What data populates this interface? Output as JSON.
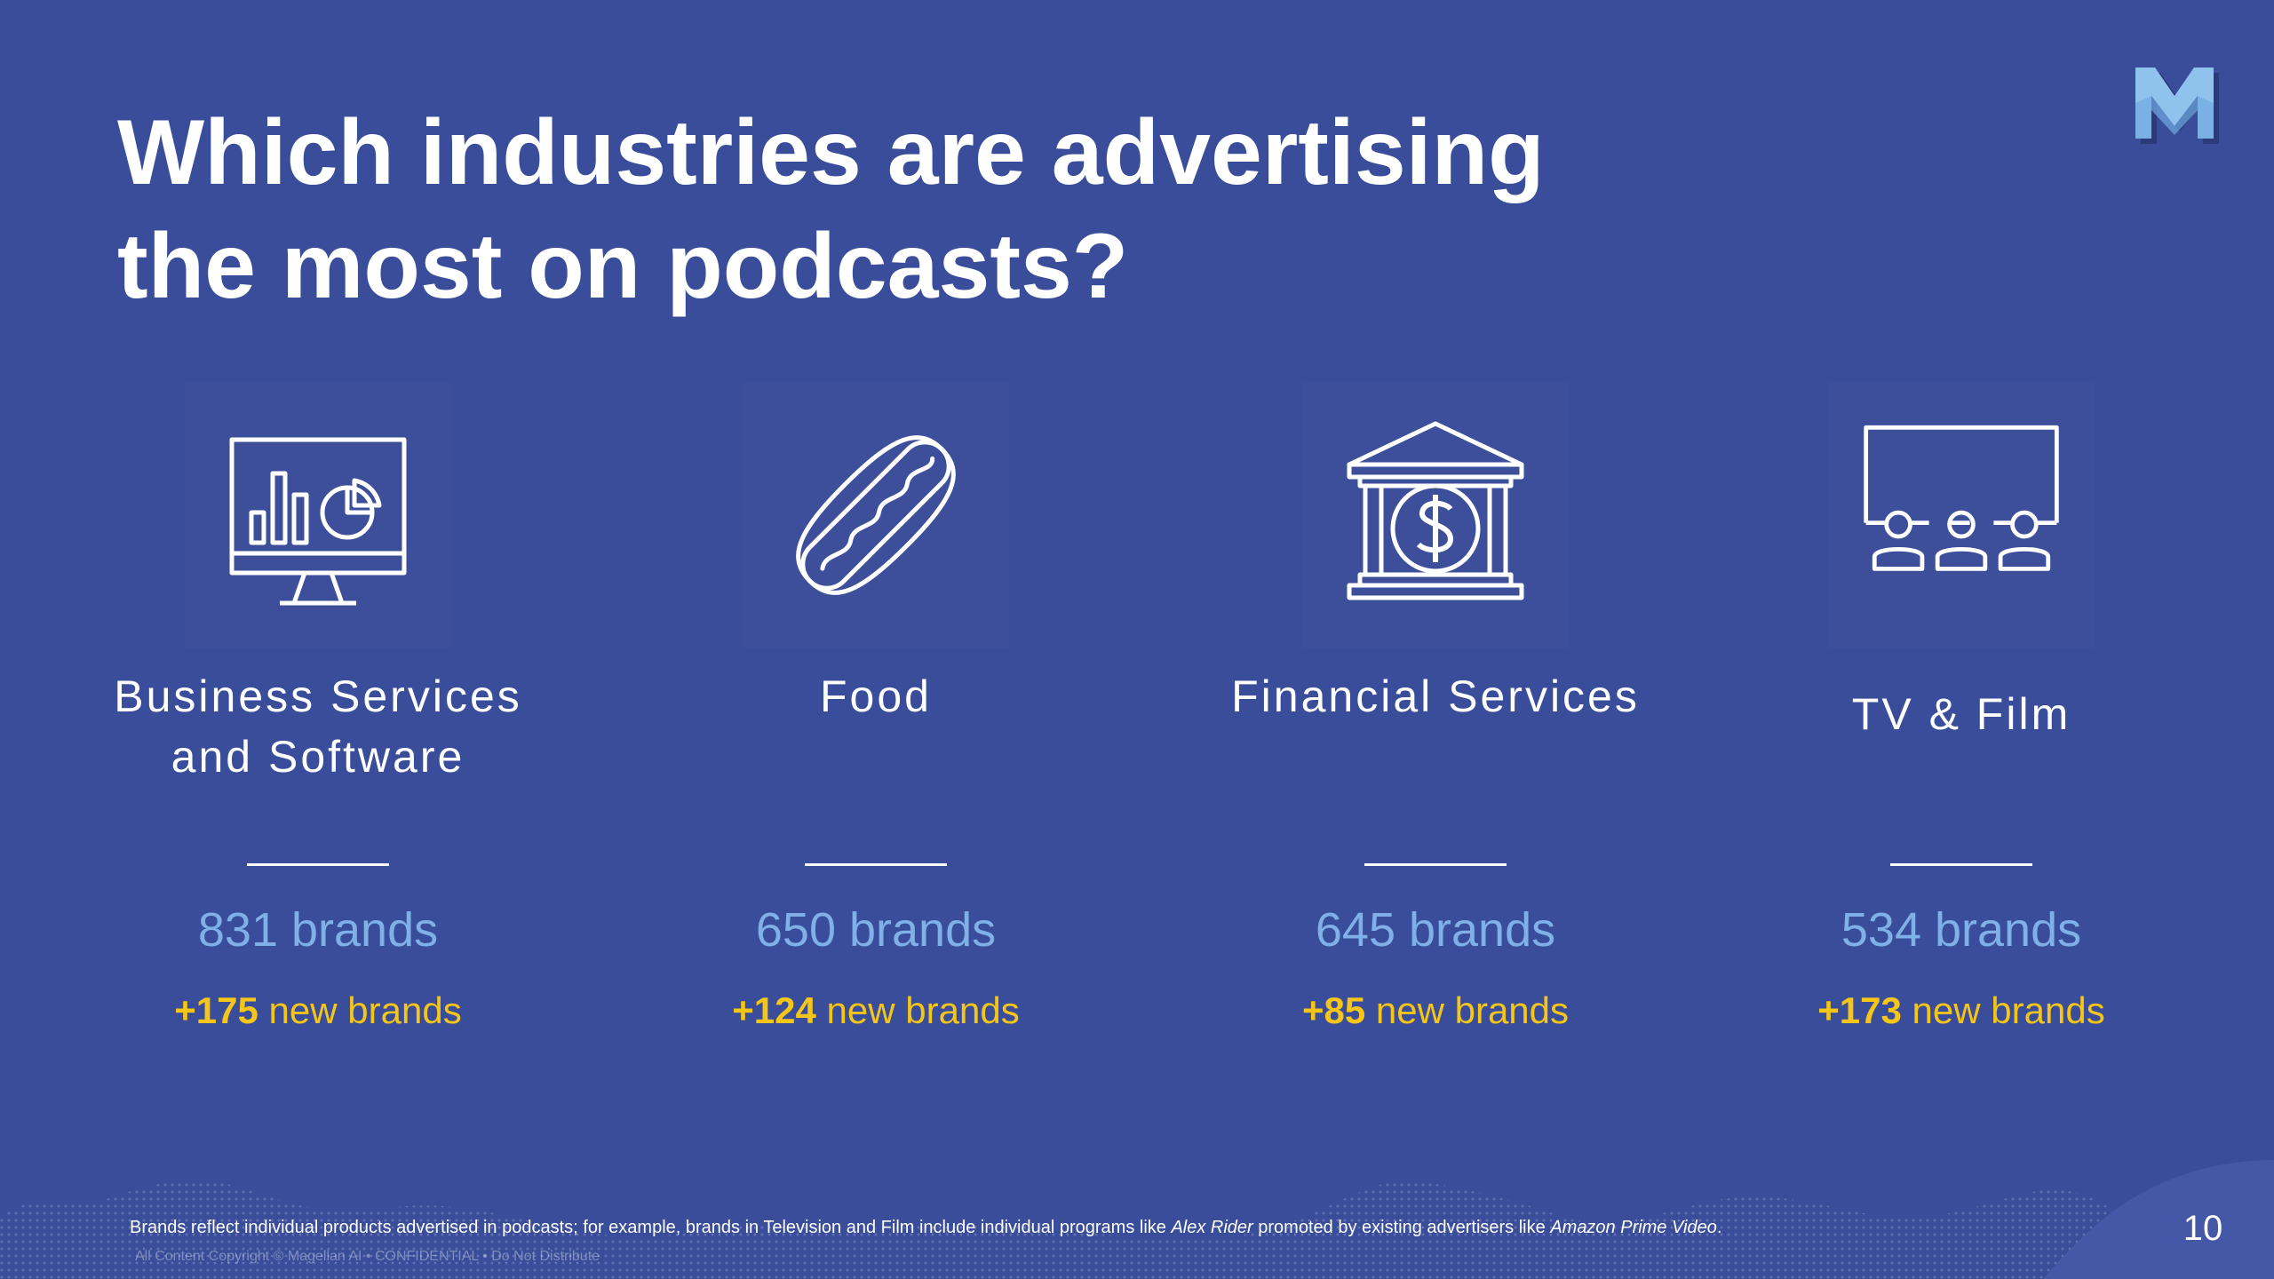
{
  "slide": {
    "title_line1": "Which industries are advertising",
    "title_line2": "the most on podcasts?",
    "page_number": "10"
  },
  "industries": [
    {
      "icon": "monitor-chart-icon",
      "name_line1": "Business Services",
      "name_line2": "and Software",
      "brands": "831 brands",
      "new_count": "+175",
      "new_label": " new brands"
    },
    {
      "icon": "hotdog-icon",
      "name_line1": "Food",
      "name_line2": "",
      "brands": "650 brands",
      "new_count": "+124",
      "new_label": " new brands"
    },
    {
      "icon": "bank-icon",
      "name_line1": "Financial Services",
      "name_line2": "",
      "brands": "645 brands",
      "new_count": "+85",
      "new_label": " new brands"
    },
    {
      "icon": "cinema-icon",
      "name_line1": "TV & Film",
      "name_line2": "",
      "brands": "534 brands",
      "new_count": "+173",
      "new_label": " new brands"
    }
  ],
  "footnote": {
    "part1": "Brands reflect individual products advertised in podcasts; for example, brands in Television and Film include individual programs like ",
    "italic1": "Alex Rider",
    "part2": " promoted by existing advertisers like ",
    "italic2": "Amazon Prime Video",
    "part3": "."
  },
  "copyright": "All Content Copyright © Magellan AI  •  CONFIDENTIAL  •  Do Not Distribute",
  "colors": {
    "background": "#3a4d9a",
    "brands_text": "#7fb0e8",
    "new_brands_text": "#f5c518",
    "logo": "#8fc3ee"
  }
}
